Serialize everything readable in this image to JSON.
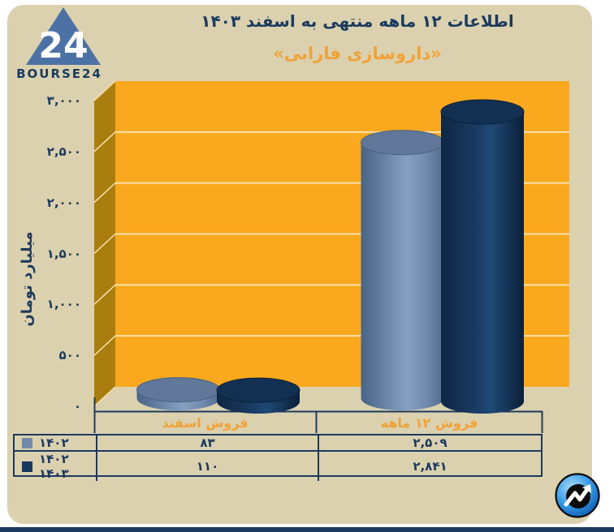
{
  "page": {
    "card_bg": "#DBD1AF",
    "footer_bar_color": "#1B3A5E"
  },
  "header": {
    "title": "اطلاعات ۱۲ ماهه منتهی به اسفند ۱۴۰۳",
    "subtitle": "«داروسازی فارابی»",
    "title_color": "#1B3A5E",
    "subtitle_color": "#F0A236"
  },
  "brand": {
    "name": "BOURSE24",
    "logo_numerals": "24",
    "triangle_color": "#4C72A5",
    "text_color": "#1B3A5E"
  },
  "chart_data": {
    "type": "bar",
    "style": "3d-cylinder",
    "categories": [
      "فروش اسفند",
      "فروش ۱۲ ماهه"
    ],
    "series": [
      {
        "name": "۱۴۰۲",
        "values": [
          83,
          2509
        ],
        "display_values": [
          "۸۳",
          "۲,۵۰۹"
        ],
        "color": "#7389A9"
      },
      {
        "name": "۱۴۰۲ ۱۴۰۳",
        "values": [
          110,
          2841
        ],
        "display_values": [
          "۱۱۰",
          "۲,۸۴۱"
        ],
        "color": "#16395E"
      }
    ],
    "ylabel": "میلیارد تومان",
    "ylim": [
      0,
      3000
    ],
    "ytick_step": 500,
    "yticks": [
      "۰",
      "۵۰۰",
      "۱,۰۰۰",
      "۱,۵۰۰",
      "۲,۰۰۰",
      "۲,۵۰۰",
      "۳,۰۰۰"
    ],
    "legend_position": "table-left",
    "grid": true,
    "plot_bg": "#FAA81D",
    "wall_color": "#A97E0E",
    "grid_color": "#F8E1AC",
    "axis_color": "#1B3A5E"
  }
}
